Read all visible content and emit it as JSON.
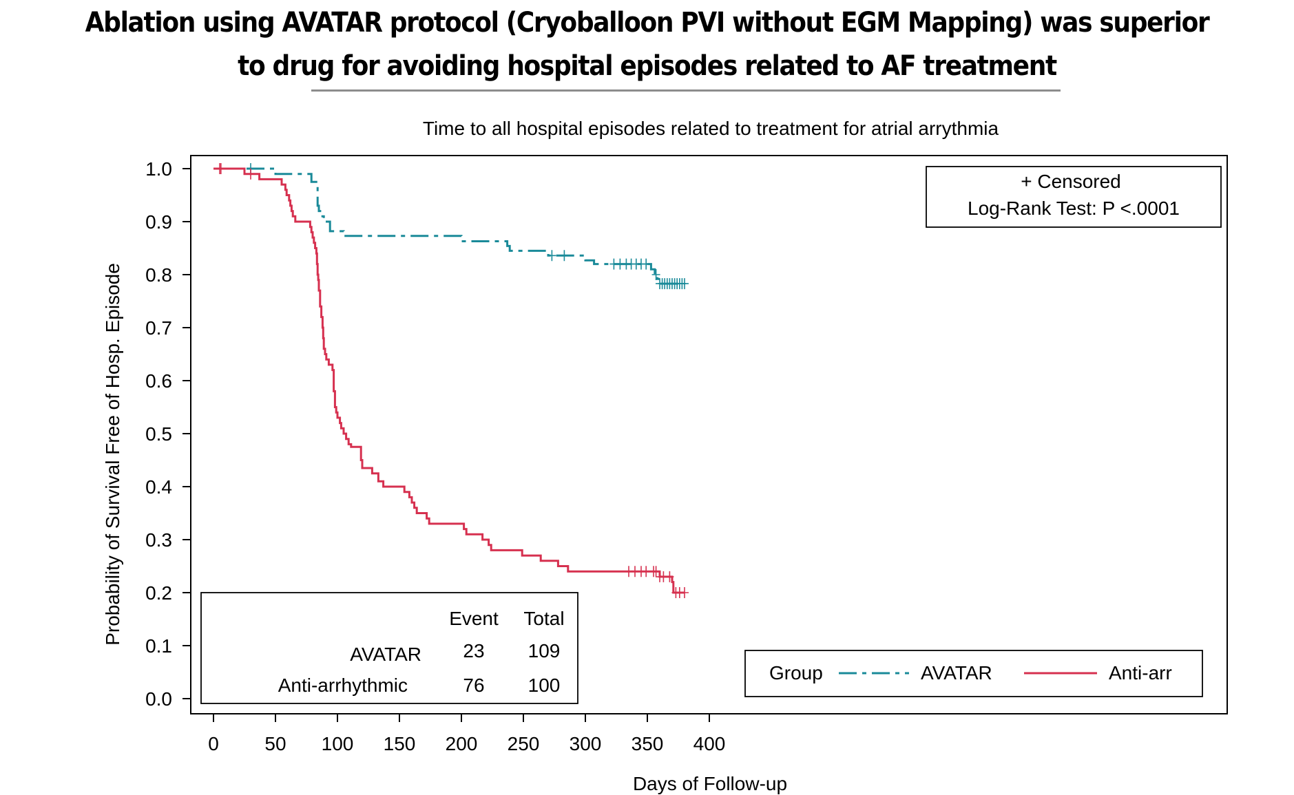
{
  "headline": {
    "line1": "Ablation using AVATAR protocol (Cryoballoon PVI without EGM Mapping) was superior",
    "line2": "to drug for avoiding hospital episodes related to AF treatment"
  },
  "chart_data": {
    "type": "line",
    "subtype": "kaplan-meier step survival curve",
    "title": "Time to all hospital episodes related to treatment for atrial arrythmia",
    "xlabel": "Days of Follow-up",
    "ylabel": "Probability of Survival Free of Hosp. Episode",
    "xlim": [
      0,
      400
    ],
    "ylim": [
      0,
      1
    ],
    "xticks": [
      0,
      50,
      100,
      150,
      200,
      250,
      300,
      350,
      400
    ],
    "yticks": [
      "0.0",
      "0.1",
      "0.2",
      "0.3",
      "0.4",
      "0.5",
      "0.6",
      "0.7",
      "0.8",
      "0.9",
      "1.0"
    ],
    "grid": false,
    "annotation": {
      "censored_label": "+ Censored",
      "test_label": "Log-Rank Test: P <.0001",
      "placement": "top-right"
    },
    "summary_table": {
      "placement": "bottom-left",
      "headers": [
        "Event",
        "Total"
      ],
      "rows": [
        {
          "group": "AVATAR",
          "event": "23",
          "total": "109"
        },
        {
          "group": "Anti-arrhythmic",
          "event": "76",
          "total": "100"
        }
      ]
    },
    "legend": {
      "title": "Group",
      "placement": "bottom-right",
      "entries": [
        {
          "label": "AVATAR",
          "color": "#1a8a99",
          "dash": "dash-dot"
        },
        {
          "label": "Anti-arr",
          "color": "#d6304f",
          "dash": "solid"
        }
      ]
    },
    "series": [
      {
        "name": "AVATAR",
        "color": "#1a8a99",
        "style": "dash-dot",
        "steps": [
          [
            0,
            1.0
          ],
          [
            50,
            0.99
          ],
          [
            79,
            0.975
          ],
          [
            84,
            0.93
          ],
          [
            85,
            0.92
          ],
          [
            87,
            0.91
          ],
          [
            89,
            0.9
          ],
          [
            94,
            0.882
          ],
          [
            105,
            0.873
          ],
          [
            200,
            0.863
          ],
          [
            237,
            0.854
          ],
          [
            239,
            0.845
          ],
          [
            270,
            0.836
          ],
          [
            300,
            0.827
          ],
          [
            307,
            0.82
          ],
          [
            353,
            0.81
          ],
          [
            356,
            0.8
          ],
          [
            358,
            0.792
          ],
          [
            359,
            0.783
          ],
          [
            380,
            0.783
          ]
        ],
        "censored": [
          30,
          273,
          283,
          323,
          328,
          333,
          337,
          341,
          345,
          349,
          357,
          360,
          362,
          364,
          366,
          368,
          370,
          372,
          374,
          376,
          378,
          380
        ]
      },
      {
        "name": "Anti-arr",
        "color": "#d6304f",
        "steps": [
          [
            0,
            1.0
          ],
          [
            25,
            0.99
          ],
          [
            37,
            0.98
          ],
          [
            50,
            0.98
          ],
          [
            55,
            0.97
          ],
          [
            58,
            0.96
          ],
          [
            59,
            0.95
          ],
          [
            61,
            0.94
          ],
          [
            62,
            0.93
          ],
          [
            63,
            0.92
          ],
          [
            64,
            0.91
          ],
          [
            66,
            0.9
          ],
          [
            68,
            0.9
          ],
          [
            76,
            0.9
          ],
          [
            78,
            0.89
          ],
          [
            79,
            0.88
          ],
          [
            80,
            0.87
          ],
          [
            81,
            0.86
          ],
          [
            82,
            0.85
          ],
          [
            83,
            0.84
          ],
          [
            83.5,
            0.82
          ],
          [
            84,
            0.8
          ],
          [
            84.5,
            0.79
          ],
          [
            85,
            0.77
          ],
          [
            86,
            0.74
          ],
          [
            87,
            0.72
          ],
          [
            88,
            0.7
          ],
          [
            88.5,
            0.68
          ],
          [
            89,
            0.66
          ],
          [
            90,
            0.65
          ],
          [
            91,
            0.64
          ],
          [
            93,
            0.63
          ],
          [
            96,
            0.62
          ],
          [
            97,
            0.58
          ],
          [
            98,
            0.55
          ],
          [
            99,
            0.54
          ],
          [
            100,
            0.53
          ],
          [
            102,
            0.52
          ],
          [
            103,
            0.51
          ],
          [
            105,
            0.5
          ],
          [
            107,
            0.49
          ],
          [
            109,
            0.48
          ],
          [
            111,
            0.475
          ],
          [
            119,
            0.45
          ],
          [
            120,
            0.435
          ],
          [
            128,
            0.425
          ],
          [
            133,
            0.41
          ],
          [
            137,
            0.4
          ],
          [
            154,
            0.39
          ],
          [
            158,
            0.38
          ],
          [
            160,
            0.37
          ],
          [
            162,
            0.36
          ],
          [
            164,
            0.35
          ],
          [
            172,
            0.34
          ],
          [
            174,
            0.33
          ],
          [
            202,
            0.32
          ],
          [
            204,
            0.31
          ],
          [
            217,
            0.3
          ],
          [
            222,
            0.29
          ],
          [
            224,
            0.28
          ],
          [
            249,
            0.27
          ],
          [
            264,
            0.26
          ],
          [
            278,
            0.25
          ],
          [
            286,
            0.24
          ],
          [
            360,
            0.23
          ],
          [
            370,
            0.22
          ],
          [
            371,
            0.2
          ],
          [
            380,
            0.2
          ]
        ],
        "censored": [
          5,
          6,
          30,
          335,
          340,
          345,
          349,
          355,
          357,
          360,
          363,
          368,
          373,
          376,
          380
        ]
      }
    ]
  }
}
